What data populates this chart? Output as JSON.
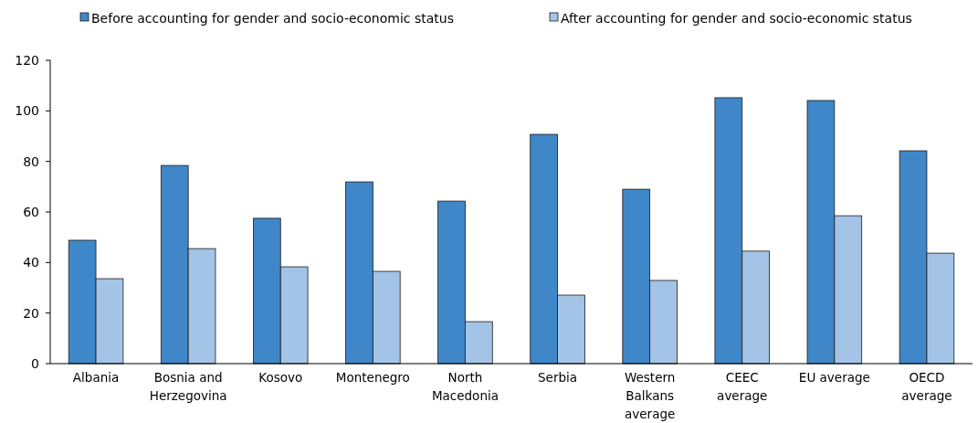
{
  "chart_data": {
    "type": "bar",
    "categories": [
      "Albania",
      "Bosnia and Herzegovina",
      "Kosovo",
      "Montenegro",
      "North Macedonia",
      "Serbia",
      "Western Balkans average",
      "CEEC average",
      "EU average",
      "OECD average"
    ],
    "series": [
      {
        "name": "Before accounting for gender and socio-economic status",
        "color": "#3f87c8",
        "values": [
          48.8,
          78.4,
          57.5,
          71.9,
          64.3,
          90.7,
          69.0,
          105.2,
          104.1,
          84.2
        ]
      },
      {
        "name": "After accounting for gender and socio-economic status",
        "color": "#a3c4e6",
        "values": [
          33.6,
          45.5,
          38.3,
          36.5,
          16.6,
          27.1,
          32.9,
          44.5,
          58.5,
          43.7
        ]
      }
    ],
    "ylim": [
      0,
      120
    ],
    "yticks": [
      0,
      20,
      40,
      60,
      80,
      100,
      120
    ],
    "grid": false,
    "legend": "top"
  }
}
